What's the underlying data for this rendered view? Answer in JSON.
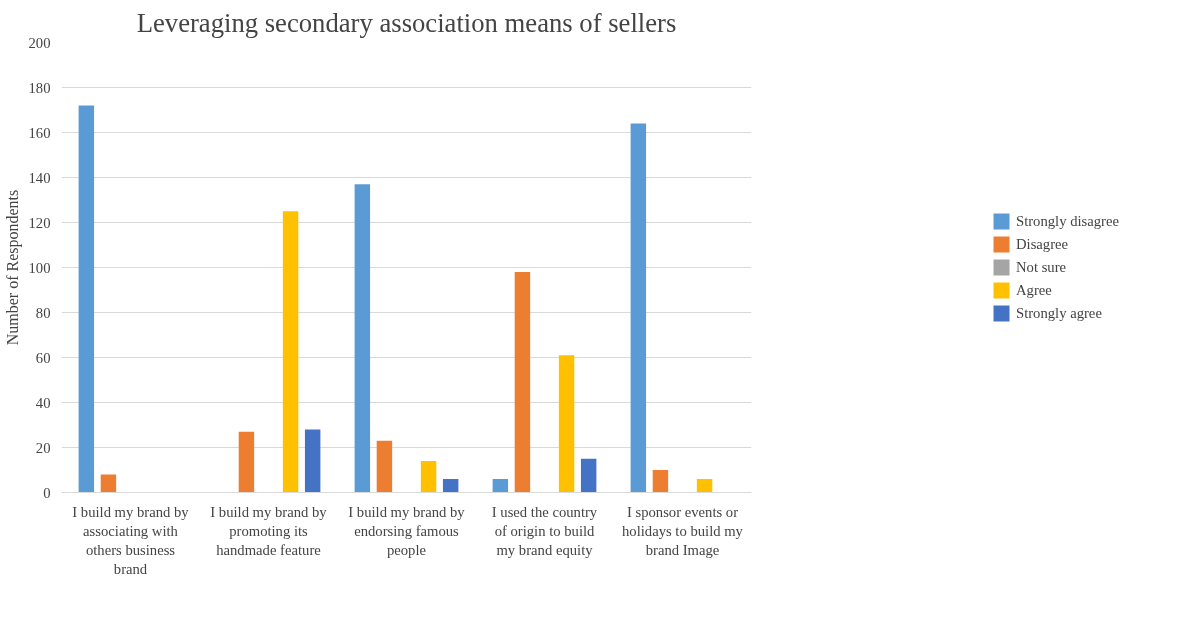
{
  "chart_data": {
    "type": "bar",
    "title": "Leveraging secondary association means of sellers",
    "ylabel": "Number of Respondents",
    "categories": [
      "I build my brand by associating with others business brand",
      "I build my brand by promoting its handmade feature",
      "I build my brand by endorsing famous people",
      "I used the country of origin to build my brand equity",
      "I sponsor events or holidays to build my brand Image"
    ],
    "series": [
      {
        "name": "Strongly disagree",
        "color": "#5b9bd5",
        "values": [
          172,
          0,
          137,
          6,
          164
        ]
      },
      {
        "name": "Disagree",
        "color": "#ed7d31",
        "values": [
          8,
          27,
          23,
          98,
          10
        ]
      },
      {
        "name": "Not sure",
        "color": "#a5a5a5",
        "values": [
          0,
          0,
          0,
          0,
          0
        ]
      },
      {
        "name": "Agree",
        "color": "#ffc000",
        "values": [
          0,
          125,
          14,
          61,
          6
        ]
      },
      {
        "name": "Strongly agree",
        "color": "#4472c4",
        "values": [
          0,
          28,
          6,
          15,
          0
        ]
      }
    ],
    "ylim": [
      0,
      200
    ],
    "yticks": [
      0,
      20,
      40,
      60,
      80,
      100,
      120,
      140,
      160,
      180,
      200
    ],
    "grid": "y",
    "legend": "right"
  }
}
